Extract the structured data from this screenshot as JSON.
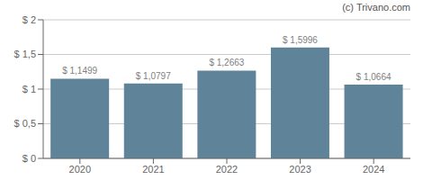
{
  "chart_data": {
    "type": "bar",
    "categories": [
      "2020",
      "2021",
      "2022",
      "2023",
      "2024"
    ],
    "values": [
      1.1499,
      1.0797,
      1.2663,
      1.5996,
      1.0664
    ],
    "value_labels": [
      "$ 1,1499",
      "$ 1,0797",
      "$ 1,2663",
      "$ 1,5996",
      "$ 1,0664"
    ],
    "color": "#5f8499",
    "ylim": [
      0,
      2.0
    ],
    "yticks": [
      {
        "value": 0,
        "label": "$ 0"
      },
      {
        "value": 0.5,
        "label": "$ 0,5"
      },
      {
        "value": 1.0,
        "label": "$ 1"
      },
      {
        "value": 1.5,
        "label": "$ 1,5"
      },
      {
        "value": 2.0,
        "label": "$ 2"
      }
    ],
    "grid": true,
    "data_labels": true,
    "annotations": [
      "(c) Trivano.com"
    ]
  }
}
